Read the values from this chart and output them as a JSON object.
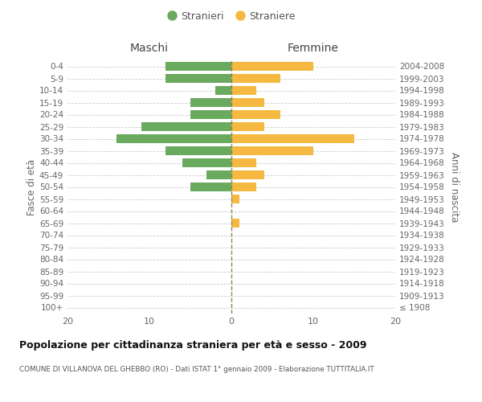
{
  "age_groups": [
    "100+",
    "95-99",
    "90-94",
    "85-89",
    "80-84",
    "75-79",
    "70-74",
    "65-69",
    "60-64",
    "55-59",
    "50-54",
    "45-49",
    "40-44",
    "35-39",
    "30-34",
    "25-29",
    "20-24",
    "15-19",
    "10-14",
    "5-9",
    "0-4"
  ],
  "birth_years": [
    "≤ 1908",
    "1909-1913",
    "1914-1918",
    "1919-1923",
    "1924-1928",
    "1929-1933",
    "1934-1938",
    "1939-1943",
    "1944-1948",
    "1949-1953",
    "1954-1958",
    "1959-1963",
    "1964-1968",
    "1969-1973",
    "1974-1978",
    "1979-1983",
    "1984-1988",
    "1989-1993",
    "1994-1998",
    "1999-2003",
    "2004-2008"
  ],
  "maschi": [
    0,
    0,
    0,
    0,
    0,
    0,
    0,
    0,
    0,
    0,
    5,
    3,
    6,
    8,
    14,
    11,
    5,
    5,
    2,
    8,
    8
  ],
  "femmine": [
    0,
    0,
    0,
    0,
    0,
    0,
    0,
    1,
    0,
    1,
    3,
    4,
    3,
    10,
    15,
    4,
    6,
    4,
    3,
    6,
    10
  ],
  "maschi_color": "#6aaa5e",
  "femmine_color": "#f5b942",
  "background_color": "#ffffff",
  "grid_color": "#cccccc",
  "title": "Popolazione per cittadinanza straniera per età e sesso - 2009",
  "subtitle": "COMUNE DI VILLANOVA DEL GHEBBO (RO) - Dati ISTAT 1° gennaio 2009 - Elaborazione TUTTITALIA.IT",
  "ylabel_left": "Fasce di età",
  "ylabel_right": "Anni di nascita",
  "legend_maschi": "Stranieri",
  "legend_femmine": "Straniere",
  "xlim": 20,
  "header_maschi": "Maschi",
  "header_femmine": "Femmine",
  "center_line_color": "#888855"
}
